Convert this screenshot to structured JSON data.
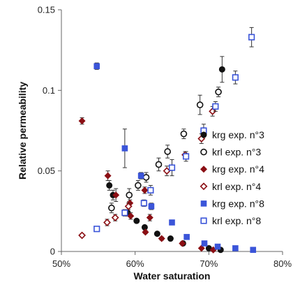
{
  "chart_data": {
    "type": "scatter",
    "title": "",
    "xlabel": "Water saturation",
    "ylabel": "Relative permeability",
    "xlim": [
      50,
      80
    ],
    "ylim": [
      0,
      0.15
    ],
    "x_unit": "%",
    "x_ticks": [
      "50%",
      "60%",
      "70%",
      "80%"
    ],
    "y_ticks": [
      "0",
      "0.05",
      "0.1",
      "0.15"
    ],
    "grid": false,
    "legend_position": "right",
    "series": [
      {
        "name": "krg exp. n°3",
        "marker": "circle",
        "filled": true,
        "color": "#111111",
        "points": [
          {
            "x": 56.5,
            "y": 0.041,
            "err": 0.003
          },
          {
            "x": 57.0,
            "y": 0.035,
            "err": 0.003
          },
          {
            "x": 59.0,
            "y": 0.024,
            "err": 0.002
          },
          {
            "x": 60.2,
            "y": 0.019,
            "err": 0.001
          },
          {
            "x": 61.3,
            "y": 0.015,
            "err": 0.001
          },
          {
            "x": 63.0,
            "y": 0.011,
            "err": 0.001
          },
          {
            "x": 64.8,
            "y": 0.008,
            "err": 0.001
          },
          {
            "x": 66.5,
            "y": 0.005,
            "err": 0.001
          },
          {
            "x": 70.0,
            "y": 0.002,
            "err": 0.0005
          },
          {
            "x": 71.6,
            "y": 0.001,
            "err": 0.0005
          },
          {
            "x": 71.8,
            "y": 0.113,
            "err": 0.008
          }
        ]
      },
      {
        "name": "krl exp. n°3",
        "marker": "circle",
        "filled": false,
        "color": "#111111",
        "points": [
          {
            "x": 56.8,
            "y": 0.027,
            "err": 0.003
          },
          {
            "x": 59.2,
            "y": 0.035,
            "err": 0.004
          },
          {
            "x": 60.4,
            "y": 0.041,
            "err": 0.003
          },
          {
            "x": 61.5,
            "y": 0.046,
            "err": 0.003
          },
          {
            "x": 63.2,
            "y": 0.054,
            "err": 0.004
          },
          {
            "x": 64.4,
            "y": 0.062,
            "err": 0.004
          },
          {
            "x": 66.6,
            "y": 0.073,
            "err": 0.003
          },
          {
            "x": 68.8,
            "y": 0.091,
            "err": 0.006
          },
          {
            "x": 71.3,
            "y": 0.099,
            "err": 0.003
          }
        ]
      },
      {
        "name": "krg exp. n°4",
        "marker": "diamond",
        "filled": true,
        "color": "#8b0f14",
        "points": [
          {
            "x": 52.8,
            "y": 0.081,
            "err": 0.002
          },
          {
            "x": 56.3,
            "y": 0.047,
            "err": 0.003
          },
          {
            "x": 57.4,
            "y": 0.035,
            "err": 0.004
          },
          {
            "x": 59.3,
            "y": 0.03,
            "err": 0.002
          },
          {
            "x": 59.4,
            "y": 0.022,
            "err": 0.002
          },
          {
            "x": 61.3,
            "y": 0.038,
            "err": 0.002
          },
          {
            "x": 62.0,
            "y": 0.021,
            "err": 0.002
          },
          {
            "x": 61.4,
            "y": 0.012,
            "err": 0.001
          },
          {
            "x": 63.6,
            "y": 0.008,
            "err": 0.001
          },
          {
            "x": 66.4,
            "y": 0.005,
            "err": 0.001
          },
          {
            "x": 69.0,
            "y": 0.002,
            "err": 0.0005
          },
          {
            "x": 70.6,
            "y": 0.001,
            "err": 0.0005
          }
        ]
      },
      {
        "name": "krl exp. n°4",
        "marker": "diamond",
        "filled": false,
        "color": "#8b0f14",
        "points": [
          {
            "x": 52.8,
            "y": 0.01,
            "err": 0.001
          },
          {
            "x": 56.2,
            "y": 0.018,
            "err": 0.002
          },
          {
            "x": 57.3,
            "y": 0.021,
            "err": 0.002
          },
          {
            "x": 59.1,
            "y": 0.028,
            "err": 0.002
          },
          {
            "x": 64.3,
            "y": 0.05,
            "err": 0.003
          },
          {
            "x": 66.8,
            "y": 0.06,
            "err": 0.002
          },
          {
            "x": 69.0,
            "y": 0.07,
            "err": 0.003
          },
          {
            "x": 70.5,
            "y": 0.087,
            "err": 0.003
          }
        ]
      },
      {
        "name": "krg exp. n°8",
        "marker": "square",
        "filled": true,
        "color": "#3b55d9",
        "points": [
          {
            "x": 54.8,
            "y": 0.115,
            "err": 0.002
          },
          {
            "x": 58.6,
            "y": 0.064,
            "err": 0.012
          },
          {
            "x": 60.8,
            "y": 0.047,
            "err": 0.002
          },
          {
            "x": 62.2,
            "y": 0.028,
            "err": 0.002
          },
          {
            "x": 65.0,
            "y": 0.018,
            "err": 0.001
          },
          {
            "x": 67.0,
            "y": 0.009,
            "err": 0.001
          },
          {
            "x": 69.4,
            "y": 0.005,
            "err": 0.001
          },
          {
            "x": 71.2,
            "y": 0.003,
            "err": 0.0005
          },
          {
            "x": 73.6,
            "y": 0.002,
            "err": 0.0005
          },
          {
            "x": 76.0,
            "y": 0.001,
            "err": 0.0005
          }
        ]
      },
      {
        "name": "krl exp. n°8",
        "marker": "square",
        "filled": false,
        "color": "#3b55d9",
        "points": [
          {
            "x": 54.8,
            "y": 0.014,
            "err": 0.001
          },
          {
            "x": 58.6,
            "y": 0.024,
            "err": 0.002
          },
          {
            "x": 61.2,
            "y": 0.03,
            "err": 0.002
          },
          {
            "x": 62.1,
            "y": 0.038,
            "err": 0.003
          },
          {
            "x": 65.0,
            "y": 0.052,
            "err": 0.005
          },
          {
            "x": 66.9,
            "y": 0.059,
            "err": 0.003
          },
          {
            "x": 69.3,
            "y": 0.075,
            "err": 0.004
          },
          {
            "x": 70.9,
            "y": 0.09,
            "err": 0.003
          },
          {
            "x": 73.6,
            "y": 0.108,
            "err": 0.004
          },
          {
            "x": 75.8,
            "y": 0.133,
            "err": 0.006
          }
        ]
      }
    ]
  }
}
